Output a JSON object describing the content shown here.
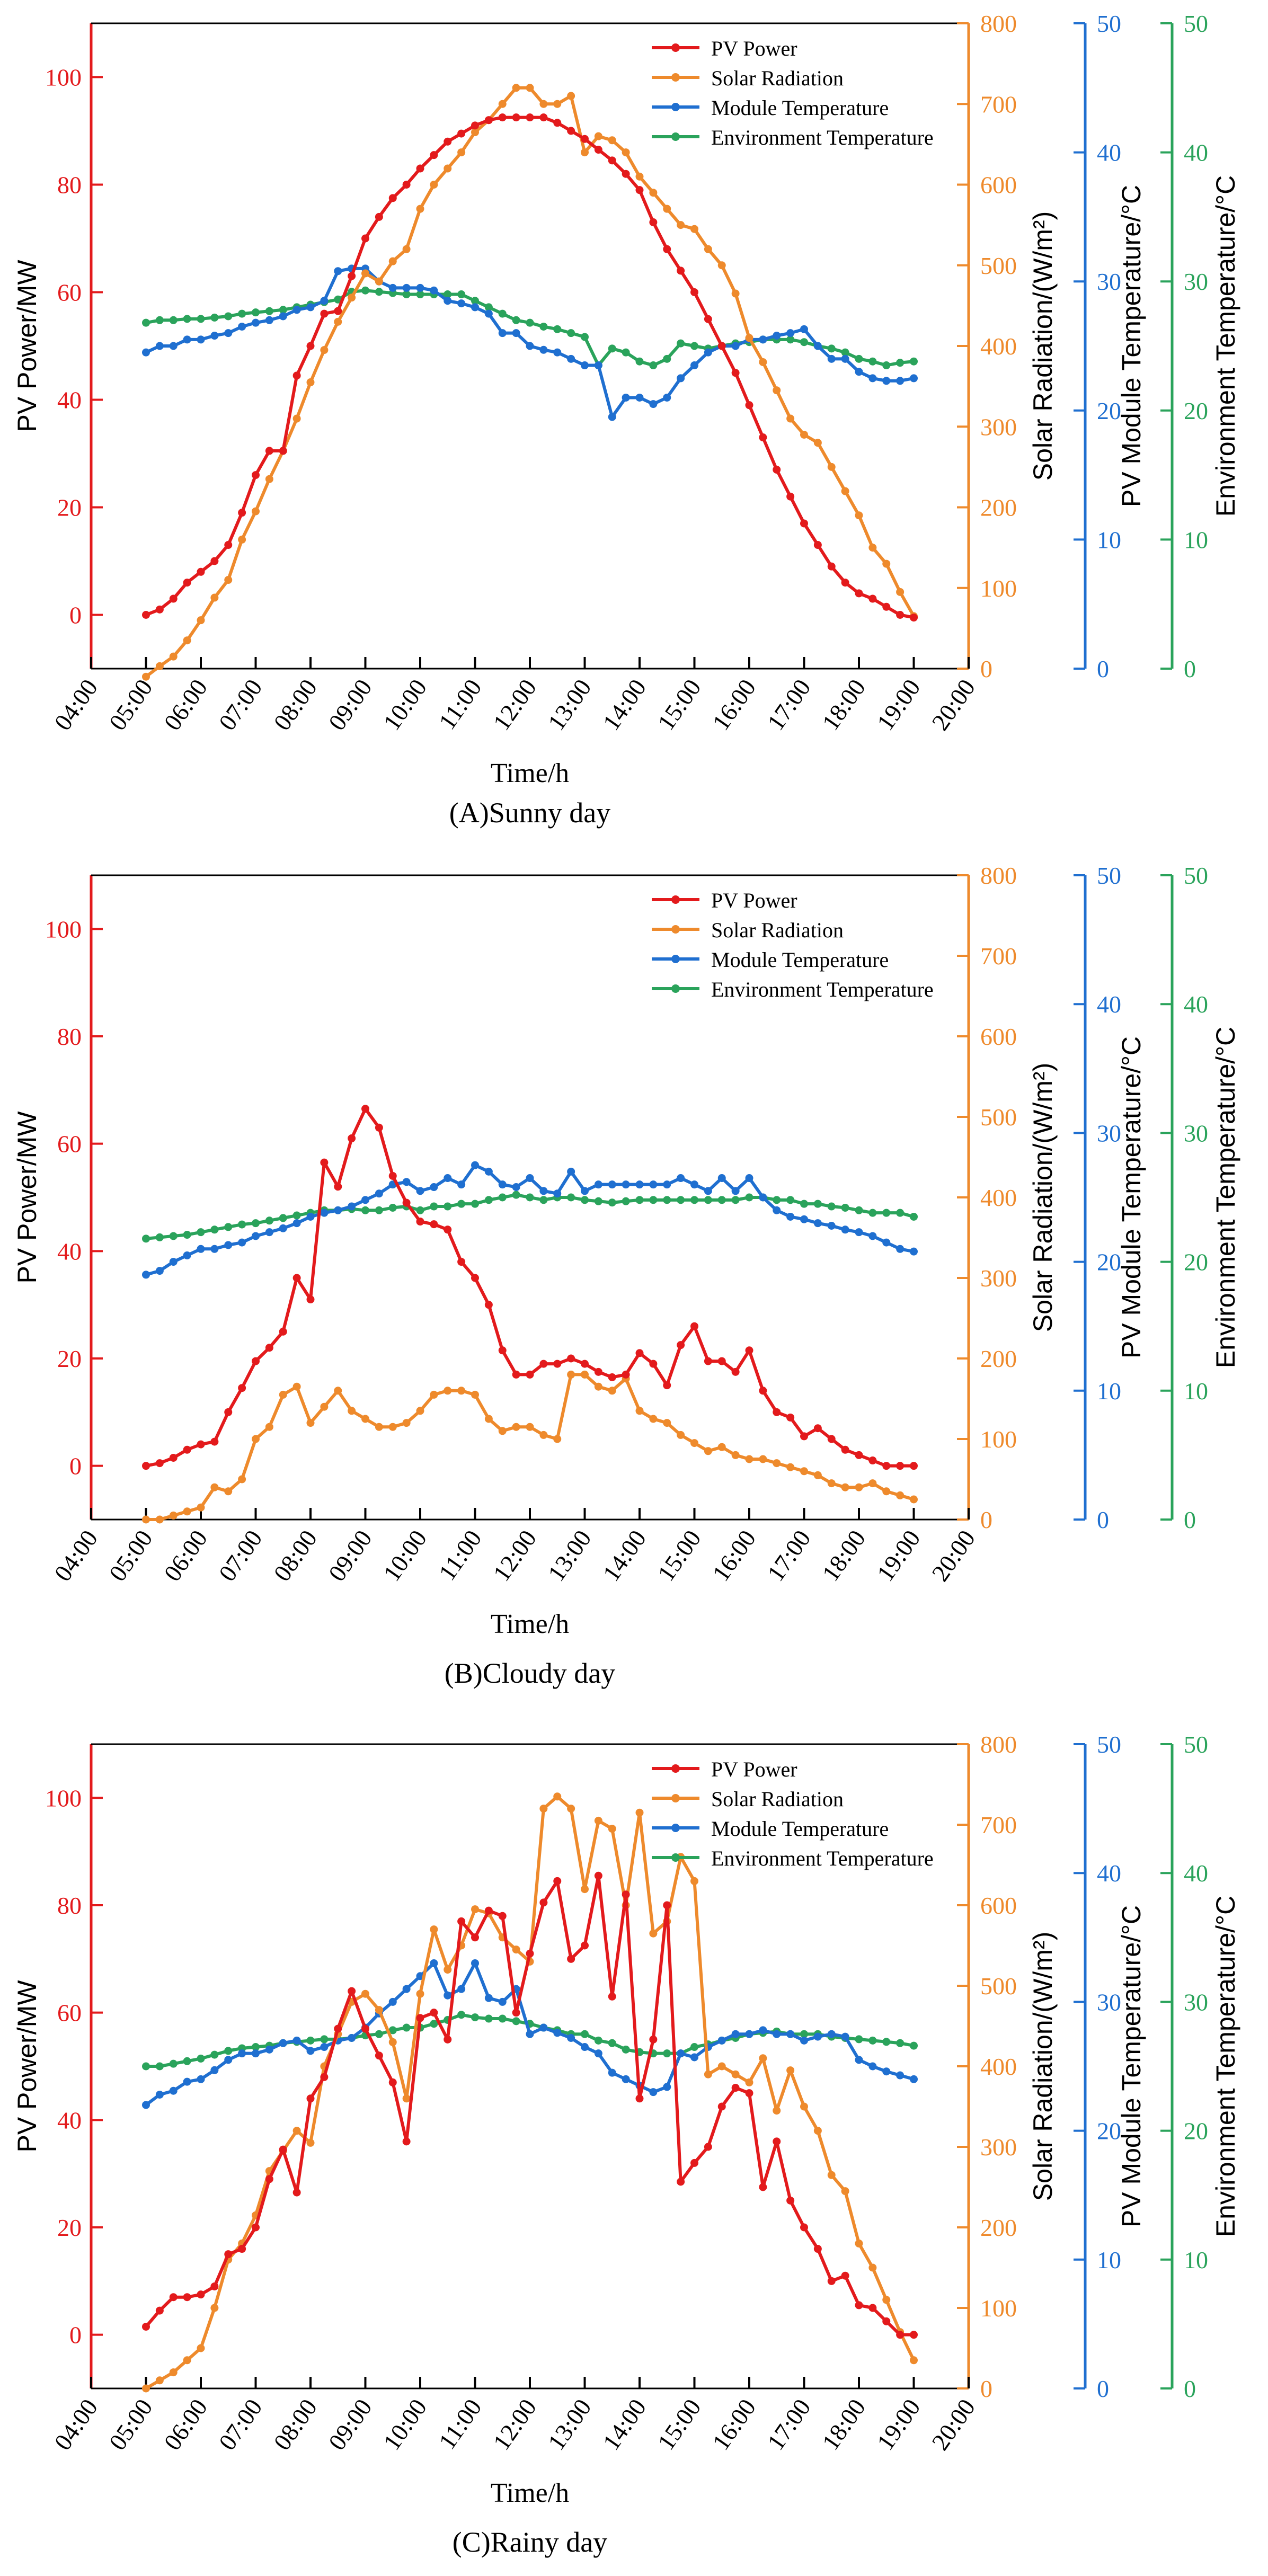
{
  "colors": {
    "pv": "#e31a1c",
    "solar": "#ee8a2c",
    "module": "#1f6fd0",
    "env": "#2aa35b",
    "axis": "#000000"
  },
  "chart_data": [
    {
      "type": "line",
      "caption": "(A)Sunny day",
      "xlabel": "Time/h",
      "x_ticks": [
        "04:00",
        "05:00",
        "06:00",
        "07:00",
        "08:00",
        "09:00",
        "10:00",
        "11:00",
        "12:00",
        "13:00",
        "14:00",
        "15:00",
        "16:00",
        "17:00",
        "18:00",
        "19:00",
        "20:00"
      ],
      "xlim": [
        4,
        20
      ],
      "axes": [
        {
          "id": "pv",
          "label": "PV Power/MW",
          "ylim": [
            -10,
            110
          ],
          "ticks": [
            0,
            20,
            40,
            60,
            80,
            100
          ],
          "color": "#e31a1c"
        },
        {
          "id": "solar",
          "label": "Solar Radiation/(W/m²)",
          "ylim": [
            0,
            800
          ],
          "ticks": [
            0,
            100,
            200,
            300,
            400,
            500,
            600,
            700,
            800
          ],
          "color": "#ee8a2c"
        },
        {
          "id": "module",
          "label": "PV Module Temperature/°C",
          "ylim": [
            0,
            50
          ],
          "ticks": [
            0,
            10,
            20,
            30,
            40,
            50
          ],
          "color": "#1f6fd0"
        },
        {
          "id": "env",
          "label": "Environment Temperature/°C",
          "ylim": [
            0,
            50
          ],
          "ticks": [
            0,
            10,
            20,
            30,
            40,
            50
          ],
          "color": "#2aa35b"
        }
      ],
      "legend": "top-right",
      "series": [
        {
          "name": "PV Power",
          "axis": "pv",
          "color": "#e31a1c",
          "values": [
            0,
            1,
            3,
            6,
            8,
            10,
            13,
            19,
            26,
            30.5,
            30.5,
            44.5,
            50,
            56,
            56.5,
            63,
            70,
            74,
            77.5,
            80,
            83,
            85.5,
            88,
            89.5,
            91,
            92,
            92.5,
            92.5,
            92.5,
            92.5,
            91.5,
            90,
            88.5,
            86.5,
            84.5,
            82,
            79,
            73,
            68,
            64,
            60,
            55,
            50,
            45,
            39,
            33,
            27,
            22,
            17,
            13,
            9,
            6,
            4,
            3,
            1.5,
            0,
            -0.5
          ]
        },
        {
          "name": "Solar Radiation",
          "axis": "solar",
          "color": "#ee8a2c",
          "values": [
            -10,
            3,
            15,
            35,
            60,
            88,
            110,
            160,
            195,
            235,
            270,
            310,
            355,
            395,
            430,
            460,
            490,
            480,
            505,
            520,
            570,
            600,
            620,
            640,
            665,
            680,
            700,
            720,
            720,
            700,
            700,
            710,
            640,
            660,
            655,
            640,
            610,
            590,
            570,
            550,
            545,
            520,
            500,
            465,
            410,
            380,
            345,
            310,
            290,
            280,
            250,
            220,
            190,
            150,
            130,
            95,
            65
          ]
        },
        {
          "name": "Module Temperature",
          "axis": "module",
          "color": "#1f6fd0",
          "values": [
            24.5,
            25,
            25,
            25.5,
            25.5,
            25.8,
            26,
            26.5,
            26.8,
            27,
            27.3,
            27.8,
            28,
            28.5,
            30.8,
            31,
            31,
            30,
            29.5,
            29.5,
            29.5,
            29.3,
            28.5,
            28.3,
            28,
            27.5,
            26,
            26,
            25,
            24.7,
            24.5,
            24,
            23.5,
            23.5,
            19.5,
            21,
            21,
            20.5,
            21,
            22.5,
            23.5,
            24.5,
            25,
            25,
            25.5,
            25.5,
            25.8,
            26,
            26.3,
            25,
            24,
            24,
            23,
            22.5,
            22.3,
            22.3,
            22.5
          ]
        },
        {
          "name": "Environment Temperature",
          "axis": "env",
          "color": "#2aa35b",
          "values": [
            26.8,
            27,
            27,
            27.1,
            27.1,
            27.2,
            27.3,
            27.5,
            27.6,
            27.7,
            27.8,
            28,
            28.2,
            28.4,
            28.6,
            29.2,
            29.3,
            29.2,
            29.1,
            29,
            29,
            29,
            29,
            29,
            28.5,
            28,
            27.5,
            27,
            26.8,
            26.5,
            26.3,
            26,
            25.7,
            23.5,
            24.8,
            24.5,
            23.8,
            23.5,
            24,
            25.2,
            25,
            24.8,
            25,
            25.2,
            25.3,
            25.5,
            25.5,
            25.5,
            25.3,
            25,
            24.8,
            24.5,
            24,
            23.8,
            23.5,
            23.7,
            23.8
          ]
        }
      ]
    },
    {
      "type": "line",
      "caption": "(B)Cloudy day",
      "xlabel": "Time/h",
      "x_ticks": [
        "04:00",
        "05:00",
        "06:00",
        "07:00",
        "08:00",
        "09:00",
        "10:00",
        "11:00",
        "12:00",
        "13:00",
        "14:00",
        "15:00",
        "16:00",
        "17:00",
        "18:00",
        "19:00",
        "20:00"
      ],
      "xlim": [
        4,
        20
      ],
      "axes": [
        {
          "id": "pv",
          "label": "PV Power/MW",
          "ylim": [
            -10,
            110
          ],
          "ticks": [
            0,
            20,
            40,
            60,
            80,
            100
          ],
          "color": "#e31a1c"
        },
        {
          "id": "solar",
          "label": "Solar Radiation/(W/m²)",
          "ylim": [
            0,
            800
          ],
          "ticks": [
            0,
            100,
            200,
            300,
            400,
            500,
            600,
            700,
            800
          ],
          "color": "#ee8a2c"
        },
        {
          "id": "module",
          "label": "PV Module Temperature/°C",
          "ylim": [
            0,
            50
          ],
          "ticks": [
            0,
            10,
            20,
            30,
            40,
            50
          ],
          "color": "#1f6fd0"
        },
        {
          "id": "env",
          "label": "Environment Temperature/°C",
          "ylim": [
            0,
            50
          ],
          "ticks": [
            0,
            10,
            20,
            30,
            40,
            50
          ],
          "color": "#2aa35b"
        }
      ],
      "legend": "top-right",
      "series": [
        {
          "name": "PV Power",
          "axis": "pv",
          "color": "#e31a1c",
          "values": [
            0,
            0.5,
            1.5,
            3,
            4,
            4.5,
            10,
            14.5,
            19.5,
            22,
            25,
            35,
            31,
            56.5,
            52,
            61,
            66.5,
            63,
            54,
            49,
            45.5,
            45,
            44,
            38,
            35,
            30,
            21.5,
            17,
            17,
            19,
            19,
            20,
            19,
            17.5,
            16.5,
            17,
            21,
            19,
            15,
            22.5,
            26,
            19.5,
            19.5,
            17.5,
            21.5,
            14,
            10,
            9,
            5.5,
            7,
            5,
            3,
            2,
            1,
            0,
            0,
            0
          ]
        },
        {
          "name": "Solar Radiation",
          "axis": "solar",
          "color": "#ee8a2c",
          "values": [
            0,
            0,
            5,
            10,
            15,
            40,
            35,
            50,
            100,
            115,
            155,
            165,
            120,
            140,
            160,
            135,
            125,
            115,
            115,
            120,
            135,
            155,
            160,
            160,
            155,
            125,
            110,
            115,
            115,
            105,
            100,
            180,
            180,
            165,
            160,
            175,
            135,
            125,
            120,
            105,
            95,
            85,
            90,
            80,
            75,
            75,
            70,
            65,
            60,
            55,
            45,
            40,
            40,
            45,
            35,
            30,
            25
          ]
        },
        {
          "name": "Module Temperature",
          "axis": "module",
          "color": "#1f6fd0",
          "values": [
            19,
            19.3,
            20,
            20.5,
            21,
            21,
            21.3,
            21.5,
            22,
            22.3,
            22.6,
            23,
            23.5,
            23.8,
            24,
            24.3,
            24.8,
            25.3,
            26,
            26.2,
            25.5,
            25.8,
            26.5,
            26,
            27.5,
            27,
            26,
            25.8,
            26.5,
            25.5,
            25.3,
            27,
            25.5,
            26,
            26,
            26,
            26,
            26,
            26,
            26.5,
            26,
            25.5,
            26.5,
            25.5,
            26.5,
            25,
            24,
            23.5,
            23.3,
            23,
            22.8,
            22.5,
            22.3,
            22,
            21.5,
            21,
            20.8
          ]
        },
        {
          "name": "Environment Temperature",
          "axis": "env",
          "color": "#2aa35b",
          "values": [
            21.8,
            21.9,
            22,
            22.1,
            22.3,
            22.5,
            22.7,
            22.9,
            23,
            23.2,
            23.4,
            23.6,
            23.8,
            24,
            24,
            24.1,
            24,
            24,
            24.2,
            24.3,
            24,
            24.3,
            24.3,
            24.5,
            24.5,
            24.8,
            25,
            25.2,
            25,
            24.8,
            25,
            25,
            24.8,
            24.7,
            24.6,
            24.7,
            24.8,
            24.8,
            24.8,
            24.8,
            24.8,
            24.8,
            24.8,
            24.8,
            25,
            25,
            24.8,
            24.8,
            24.5,
            24.5,
            24.3,
            24.2,
            24,
            23.8,
            23.8,
            23.8,
            23.5
          ]
        }
      ]
    },
    {
      "type": "line",
      "caption": "(C)Rainy day",
      "xlabel": "Time/h",
      "x_ticks": [
        "04:00",
        "05:00",
        "06:00",
        "07:00",
        "08:00",
        "09:00",
        "10:00",
        "11:00",
        "12:00",
        "13:00",
        "14:00",
        "15:00",
        "16:00",
        "17:00",
        "18:00",
        "19:00",
        "20:00"
      ],
      "xlim": [
        4,
        20
      ],
      "axes": [
        {
          "id": "pv",
          "label": "PV Power/MW",
          "ylim": [
            -10,
            110
          ],
          "ticks": [
            0,
            20,
            40,
            60,
            80,
            100
          ],
          "color": "#e31a1c"
        },
        {
          "id": "solar",
          "label": "Solar Radiation/(W/m²)",
          "ylim": [
            0,
            800
          ],
          "ticks": [
            0,
            100,
            200,
            300,
            400,
            500,
            600,
            700,
            800
          ],
          "color": "#ee8a2c"
        },
        {
          "id": "module",
          "label": "PV Module Temperature/°C",
          "ylim": [
            0,
            50
          ],
          "ticks": [
            0,
            10,
            20,
            30,
            40,
            50
          ],
          "color": "#1f6fd0"
        },
        {
          "id": "env",
          "label": "Environment Temperature/°C",
          "ylim": [
            0,
            50
          ],
          "ticks": [
            0,
            10,
            20,
            30,
            40,
            50
          ],
          "color": "#2aa35b"
        }
      ],
      "legend": "top-right",
      "series": [
        {
          "name": "PV Power",
          "axis": "pv",
          "color": "#e31a1c",
          "values": [
            1.5,
            4.5,
            7,
            7,
            7.5,
            9,
            15,
            16,
            20,
            29,
            34.5,
            26.5,
            44,
            48,
            57,
            64,
            57,
            52,
            47,
            36,
            59,
            60,
            55,
            77,
            74,
            79,
            78,
            60,
            71,
            80.5,
            84.5,
            70,
            72.5,
            85.5,
            63,
            82,
            44,
            55,
            80,
            28.5,
            32,
            35,
            42.5,
            46,
            45,
            27.5,
            36,
            25,
            20,
            16,
            10,
            11,
            5.5,
            5,
            2.5,
            0,
            0
          ]
        },
        {
          "name": "Solar Radiation",
          "axis": "solar",
          "color": "#ee8a2c",
          "values": [
            0,
            10,
            20,
            35,
            50,
            100,
            160,
            180,
            215,
            270,
            295,
            320,
            305,
            400,
            440,
            480,
            490,
            470,
            430,
            360,
            490,
            570,
            520,
            550,
            595,
            590,
            560,
            545,
            530,
            720,
            735,
            720,
            620,
            705,
            695,
            600,
            715,
            565,
            580,
            660,
            630,
            390,
            400,
            390,
            380,
            410,
            345,
            395,
            350,
            320,
            265,
            245,
            180,
            150,
            110,
            70,
            35
          ]
        },
        {
          "name": "Module Temperature",
          "axis": "module",
          "color": "#1f6fd0",
          "values": [
            22,
            22.8,
            23.1,
            23.8,
            24,
            24.7,
            25.5,
            26,
            26,
            26.3,
            26.8,
            27,
            26.2,
            26.5,
            27,
            27.2,
            28,
            29.1,
            30,
            31,
            32,
            33,
            30.5,
            31,
            33,
            30.3,
            30,
            31,
            27.5,
            28,
            27.6,
            27.2,
            26.5,
            26,
            24.5,
            24,
            23.5,
            23,
            23.4,
            26,
            25.7,
            26.5,
            27,
            27.5,
            27.5,
            27.8,
            27.5,
            27.5,
            27,
            27.3,
            27.5,
            27.3,
            25.5,
            25,
            24.6,
            24.3,
            24
          ]
        },
        {
          "name": "Environment Temperature",
          "axis": "env",
          "color": "#2aa35b",
          "values": [
            25,
            25,
            25.2,
            25.4,
            25.6,
            25.9,
            26.2,
            26.4,
            26.5,
            26.6,
            26.8,
            26.9,
            27,
            27.1,
            27.1,
            27.2,
            27.4,
            27.5,
            27.8,
            28,
            28,
            28.3,
            28.6,
            29,
            28.8,
            28.7,
            28.7,
            28.5,
            28.3,
            28,
            27.8,
            27.5,
            27.5,
            27,
            26.8,
            26.3,
            26.1,
            26,
            26,
            26,
            26.5,
            26.7,
            27,
            27.2,
            27.5,
            27.6,
            27.7,
            27.5,
            27.5,
            27.5,
            27.3,
            27.2,
            27.1,
            27,
            26.9,
            26.8,
            26.6
          ]
        }
      ]
    }
  ]
}
